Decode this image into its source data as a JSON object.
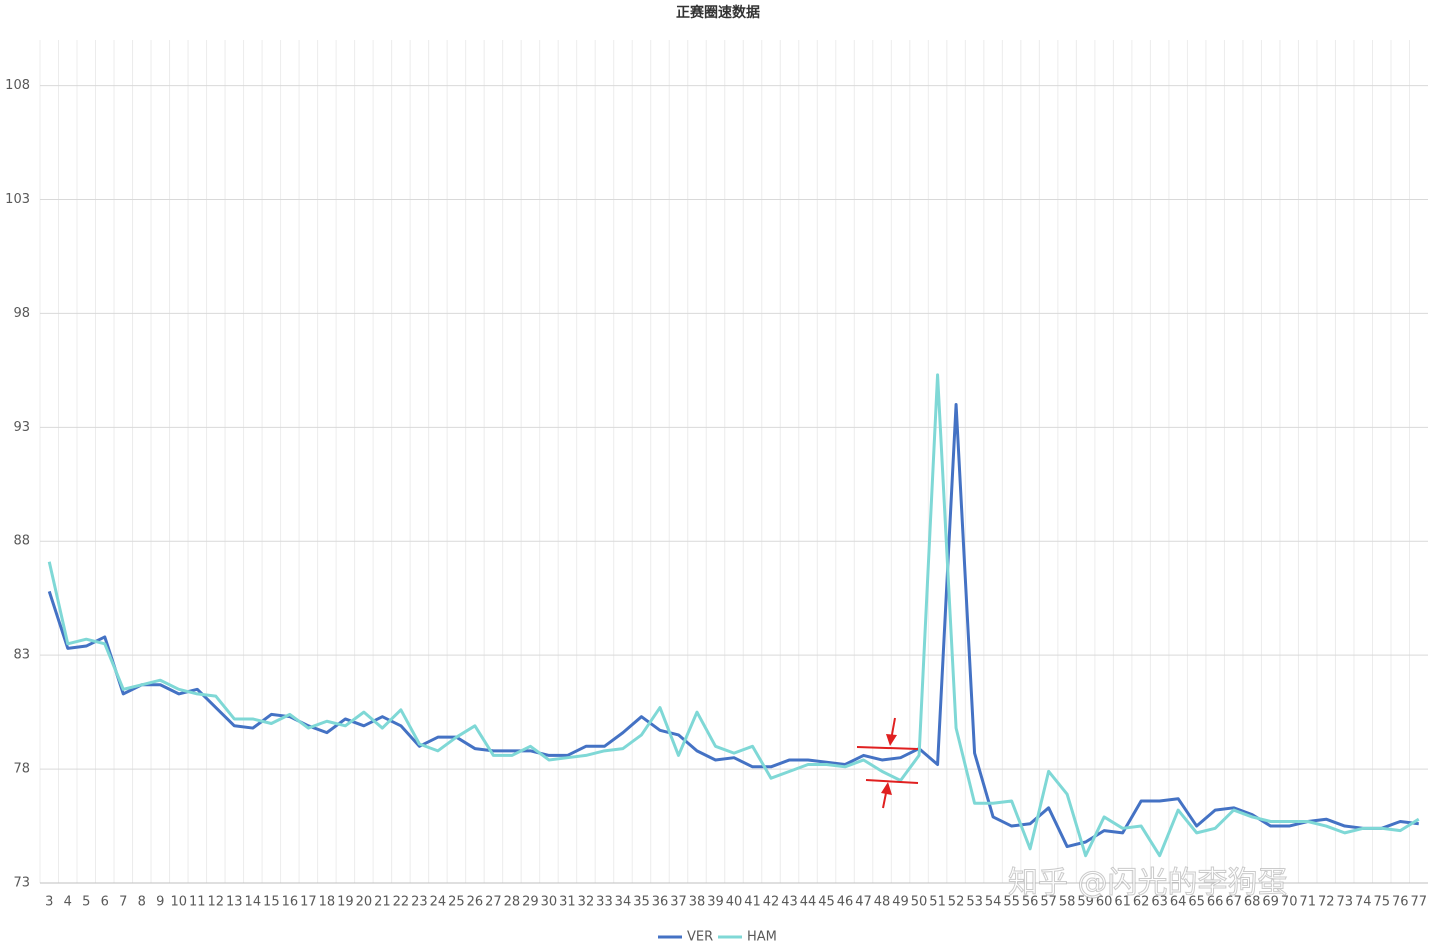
{
  "chart_data": {
    "type": "line",
    "title": "正赛圈速数据",
    "categories": [
      3,
      4,
      5,
      6,
      7,
      8,
      9,
      10,
      11,
      12,
      13,
      14,
      15,
      16,
      17,
      18,
      19,
      20,
      21,
      22,
      23,
      24,
      25,
      26,
      27,
      28,
      29,
      30,
      31,
      32,
      33,
      34,
      35,
      36,
      37,
      38,
      39,
      40,
      41,
      42,
      43,
      44,
      45,
      46,
      47,
      48,
      49,
      50,
      51,
      52,
      53,
      54,
      55,
      56,
      57,
      58,
      59,
      60,
      61,
      62,
      63,
      64,
      65,
      66,
      67,
      68,
      69,
      70,
      71,
      72,
      73,
      74,
      75,
      76,
      77
    ],
    "series": [
      {
        "name": "VER",
        "color": "#4472c4",
        "values": [
          85.8,
          83.3,
          83.4,
          83.8,
          81.3,
          81.7,
          81.7,
          81.3,
          81.5,
          80.7,
          79.9,
          79.8,
          80.4,
          80.3,
          79.9,
          79.6,
          80.2,
          79.9,
          80.3,
          79.9,
          79.0,
          79.4,
          79.4,
          78.9,
          78.8,
          78.8,
          78.8,
          78.6,
          78.6,
          79.0,
          79.0,
          79.6,
          80.3,
          79.7,
          79.5,
          78.8,
          78.4,
          78.5,
          78.1,
          78.1,
          78.4,
          78.4,
          78.3,
          78.2,
          78.6,
          78.4,
          78.5,
          78.9,
          78.2,
          94.0,
          78.7,
          75.9,
          75.5,
          75.6,
          76.3,
          74.6,
          74.8,
          75.3,
          75.2,
          76.6,
          76.6,
          76.7,
          75.5,
          76.2,
          76.3,
          76.0,
          75.5,
          75.5,
          75.7,
          75.8,
          75.5,
          75.4,
          75.4,
          75.7,
          75.6
        ]
      },
      {
        "name": "HAM",
        "color": "#7fd8d6",
        "values": [
          87.1,
          83.5,
          83.7,
          83.5,
          81.5,
          81.7,
          81.9,
          81.5,
          81.3,
          81.2,
          80.2,
          80.2,
          80.0,
          80.4,
          79.8,
          80.1,
          79.9,
          80.5,
          79.8,
          80.6,
          79.1,
          78.8,
          79.4,
          79.9,
          78.6,
          78.6,
          79.0,
          78.4,
          78.5,
          78.6,
          78.8,
          78.9,
          79.5,
          80.7,
          78.6,
          80.5,
          79.0,
          78.7,
          79.0,
          77.6,
          77.9,
          78.2,
          78.2,
          78.1,
          78.4,
          77.9,
          77.5,
          78.6,
          95.3,
          79.8,
          76.5,
          76.5,
          76.6,
          74.5,
          77.9,
          76.9,
          74.2,
          75.9,
          75.4,
          75.5,
          74.2,
          76.2,
          75.2,
          75.4,
          76.2,
          75.9,
          75.7,
          75.7,
          75.7,
          75.5,
          75.2,
          75.4,
          75.4,
          75.3,
          75.8
        ]
      }
    ],
    "ylim": [
      73,
      110
    ],
    "yticks": [
      73,
      78,
      83,
      88,
      93,
      98,
      103,
      108
    ],
    "grid": true,
    "legend": "bottom",
    "watermark": "知乎 @闪光的李狗蛋"
  }
}
